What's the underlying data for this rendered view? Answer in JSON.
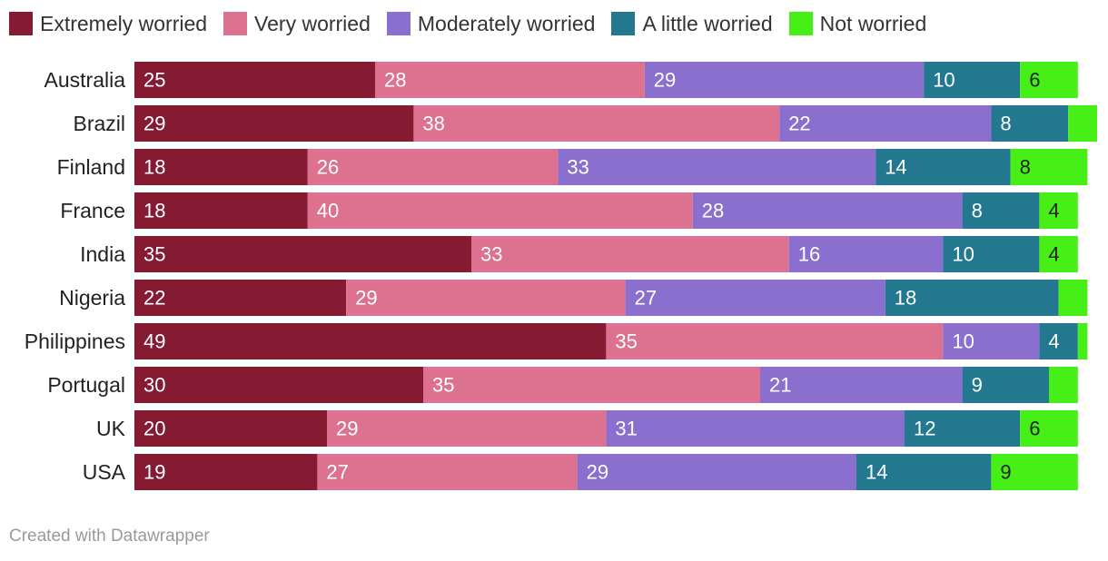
{
  "chart_data": {
    "type": "bar",
    "orientation": "horizontal",
    "stacked": true,
    "categories": [
      "Australia",
      "Brazil",
      "Finland",
      "France",
      "India",
      "Nigeria",
      "Philippines",
      "Portugal",
      "UK",
      "USA"
    ],
    "series": [
      {
        "name": "Extremely worried",
        "color": "#841b32",
        "values": [
          25,
          29,
          18,
          18,
          35,
          22,
          49,
          30,
          20,
          19
        ]
      },
      {
        "name": "Very worried",
        "color": "#dc728f",
        "values": [
          28,
          38,
          26,
          40,
          33,
          29,
          35,
          35,
          29,
          27
        ]
      },
      {
        "name": "Moderately worried",
        "color": "#8b6fcf",
        "values": [
          29,
          22,
          33,
          28,
          16,
          27,
          10,
          21,
          31,
          29
        ]
      },
      {
        "name": "A little worried",
        "color": "#237890",
        "values": [
          10,
          8,
          14,
          8,
          10,
          18,
          4,
          9,
          12,
          14
        ]
      },
      {
        "name": "Not worried",
        "color": "#46ef16",
        "values": [
          6,
          3,
          8,
          4,
          4,
          3,
          1,
          3,
          6,
          9
        ]
      }
    ],
    "hidden_labels": [
      [
        false,
        false,
        false,
        false,
        false
      ],
      [
        false,
        false,
        false,
        false,
        true
      ],
      [
        false,
        false,
        false,
        false,
        false
      ],
      [
        false,
        false,
        false,
        false,
        false
      ],
      [
        false,
        false,
        false,
        false,
        false
      ],
      [
        false,
        false,
        false,
        false,
        true
      ],
      [
        false,
        false,
        false,
        false,
        true
      ],
      [
        false,
        false,
        false,
        false,
        true
      ],
      [
        false,
        false,
        false,
        false,
        false
      ],
      [
        false,
        false,
        false,
        false,
        false
      ]
    ],
    "xlim": [
      0,
      100
    ],
    "grid": false,
    "legend_position": "top-left"
  },
  "footer": "Created with Datawrapper"
}
